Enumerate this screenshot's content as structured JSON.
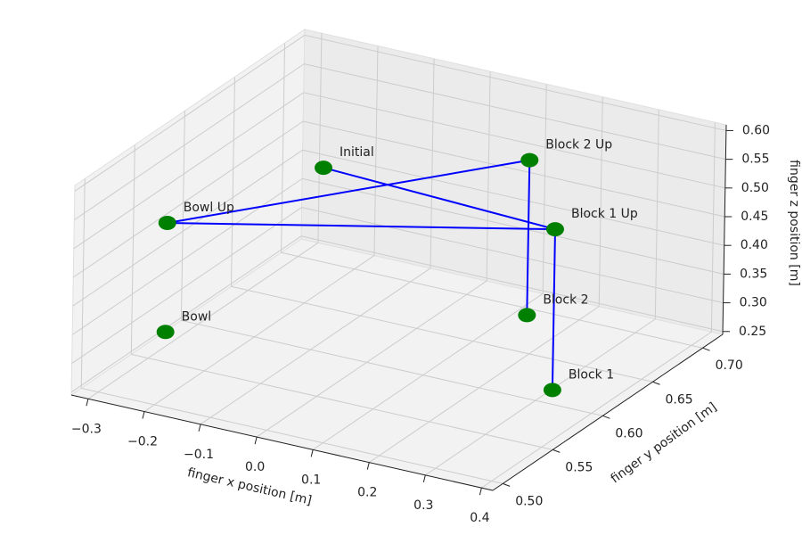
{
  "chart_data": {
    "type": "scatter3d",
    "xlabel": "finger x position [m]",
    "ylabel": "finger y position [m]",
    "zlabel": "finger z position [m]",
    "xlim": [
      -0.33,
      0.42
    ],
    "ylim": [
      0.49,
      0.72
    ],
    "zlim": [
      0.245,
      0.61
    ],
    "xticks": [
      {
        "value": -0.3,
        "label": "−0.3"
      },
      {
        "value": -0.2,
        "label": "−0.2"
      },
      {
        "value": -0.1,
        "label": "−0.1"
      },
      {
        "value": 0,
        "label": "0.0"
      },
      0.1,
      0.2,
      0.3,
      0.4
    ],
    "yticks": [
      {
        "value": 0.5,
        "label": "0.50"
      },
      0.55,
      {
        "value": 0.6,
        "label": "0.60"
      },
      0.65,
      {
        "value": 0.7,
        "label": "0.70"
      }
    ],
    "zticks": [
      0.25,
      {
        "value": 0.3,
        "label": "0.30"
      },
      0.35,
      {
        "value": 0.4,
        "label": "0.40"
      },
      0.45,
      {
        "value": 0.5,
        "label": "0.50"
      },
      0.55,
      {
        "value": 0.6,
        "label": "0.60"
      }
    ],
    "points": {
      "color": "#008000",
      "labels": [
        "Initial",
        "Block 1",
        "Block 2",
        "Block 1 Up",
        "Block 2 Up",
        "Bowl",
        "Bowl Up"
      ],
      "x": [
        -0.1,
        0.33,
        0.16,
        0.33,
        0.16,
        -0.2,
        -0.2
      ],
      "y": [
        0.61,
        0.6,
        0.67,
        0.6,
        0.67,
        0.51,
        0.51
      ],
      "z": [
        0.55,
        0.27,
        0.28,
        0.55,
        0.55,
        0.36,
        0.55
      ]
    },
    "line": {
      "color": "#0000ff",
      "x": [
        -0.1,
        0.33,
        0.33,
        0.33,
        -0.2,
        0.16,
        0.16
      ],
      "y": [
        0.61,
        0.6,
        0.6,
        0.6,
        0.51,
        0.67,
        0.67
      ],
      "z": [
        0.55,
        0.55,
        0.27,
        0.55,
        0.55,
        0.55,
        0.28
      ]
    }
  }
}
